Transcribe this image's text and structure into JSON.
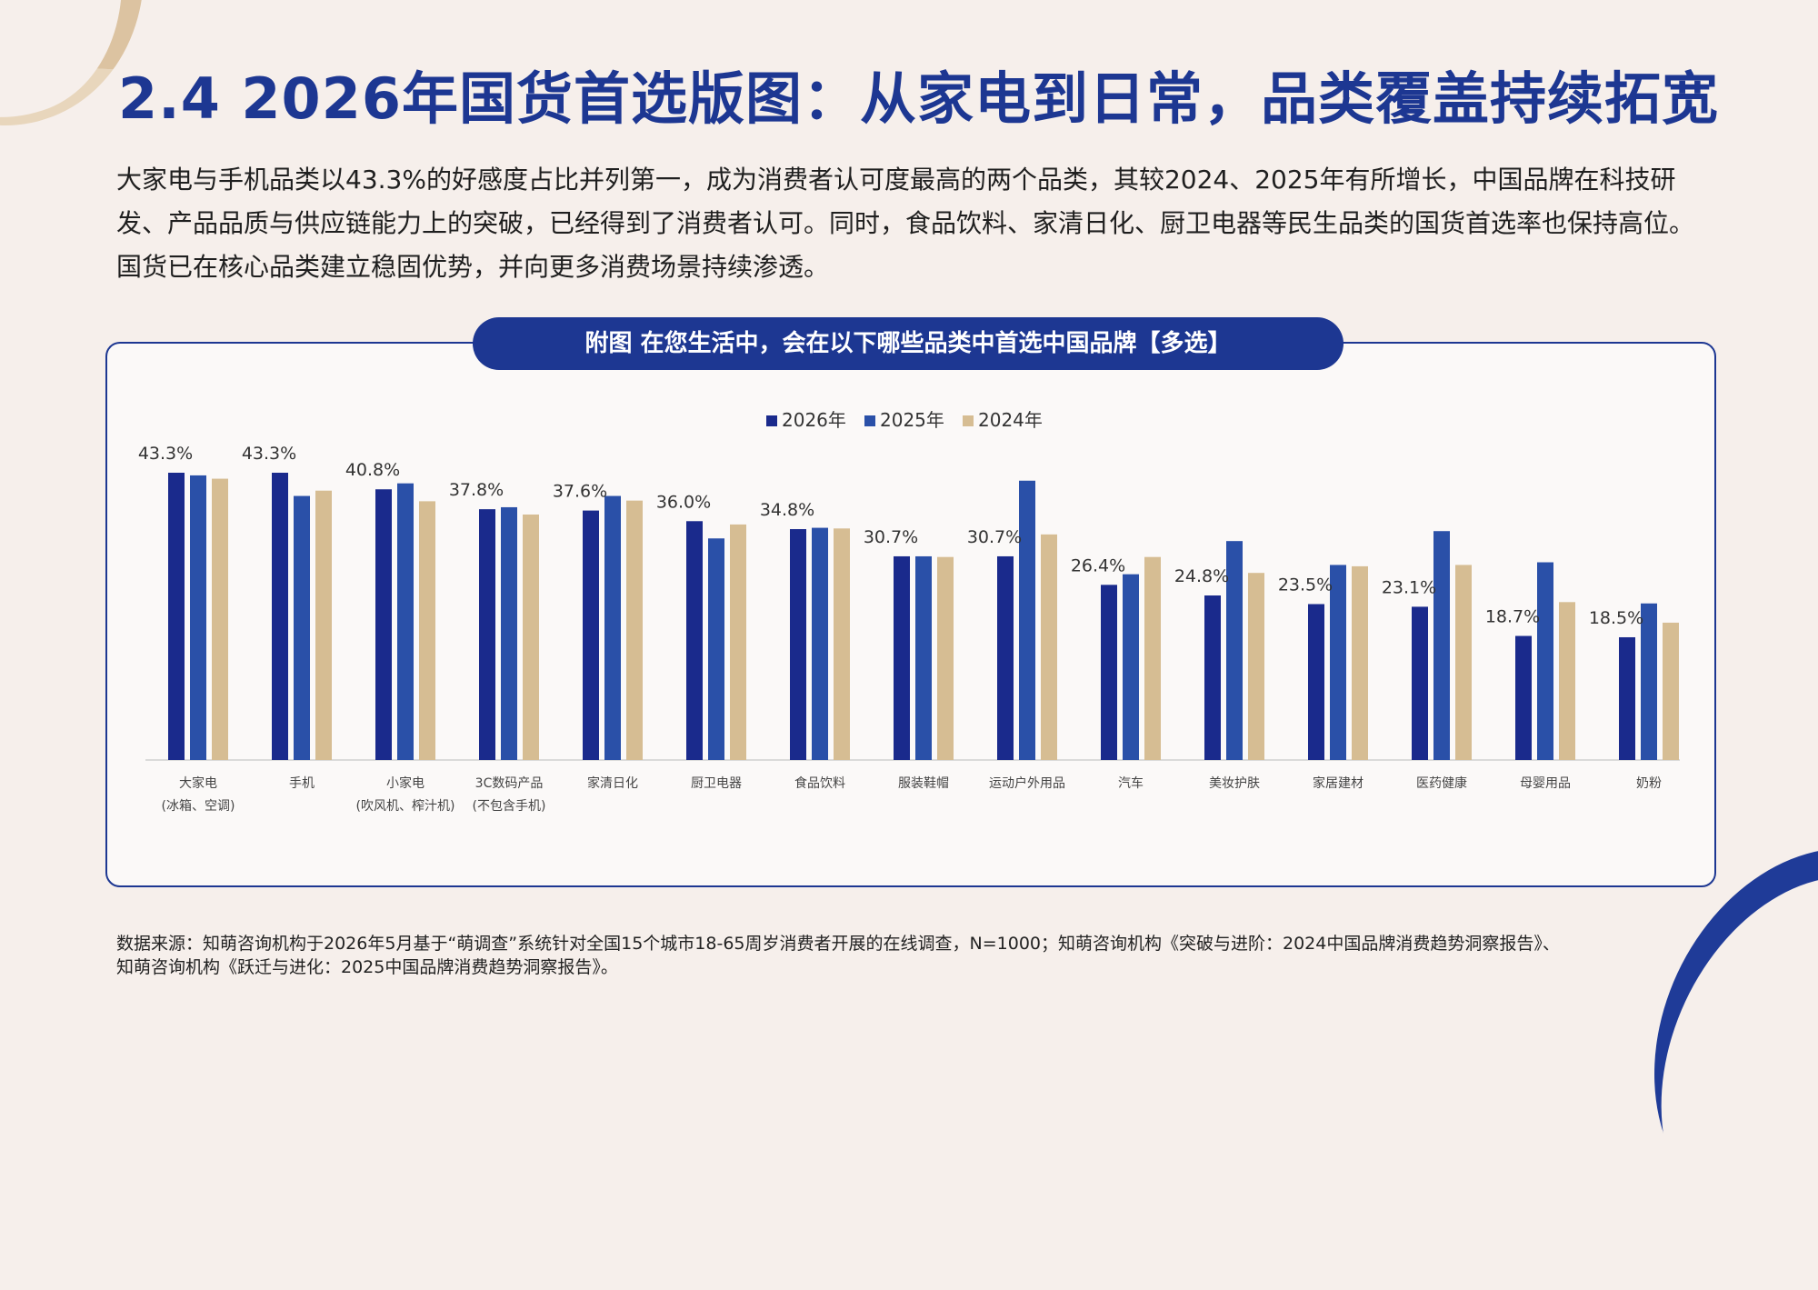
{
  "page": {
    "title": "2.4  2026年国货首选版图：从家电到日常，品类覆盖持续拓宽",
    "intro": "大家电与手机品类以43.3%的好感度占比并列第一，成为消费者认可度最高的两个品类，其较2024、2025年有所增长，中国品牌在科技研发、产品品质与供应链能力上的突破，已经得到了消费者认可。同时，食品饮料、家清日化、厨卫电器等民生品类的国货首选率也保持高位。国货已在核心品类建立稳固优势，并向更多消费场景持续渗透。",
    "chart_heading": "附图  在您生活中，会在以下哪些品类中首选中国品牌【多选】",
    "footer_line1": "数据来源：知萌咨询机构于2026年5月基于“萌调查”系统针对全国15个城市18-65周岁消费者开展的在线调查，N=1000；知萌咨询机构《突破与进阶：2024中国品牌消费趋势洞察报告》、",
    "footer_line2": "知萌咨询机构《跃迁与进化：2025中国品牌消费趋势洞察报告》。",
    "colors": {
      "primary": "#1d3792",
      "background": "#f6efeb",
      "accent_gold": "#dcc3a1"
    }
  },
  "chart_data": {
    "type": "bar",
    "categories": [
      [
        "大家电",
        "(冰箱、空调)"
      ],
      [
        "手机"
      ],
      [
        "小家电",
        "(吹风机、榨汁机)"
      ],
      [
        "3C数码产品",
        "(不包含手机)"
      ],
      [
        "家清日化"
      ],
      [
        "厨卫电器"
      ],
      [
        "食品饮料"
      ],
      [
        "服装鞋帽"
      ],
      [
        "运动户外用品"
      ],
      [
        "汽车"
      ],
      [
        "美妆护肤"
      ],
      [
        "家居建材"
      ],
      [
        "医药健康"
      ],
      [
        "母婴用品"
      ],
      [
        "奶粉"
      ]
    ],
    "series": [
      {
        "name": "2026年",
        "color": "#1a2a8c",
        "values": [
          43.3,
          43.3,
          40.8,
          37.8,
          37.6,
          36.0,
          34.8,
          30.7,
          30.7,
          26.4,
          24.8,
          23.5,
          23.1,
          18.7,
          18.5
        ]
      },
      {
        "name": "2025年",
        "color": "#2a50a8",
        "values": [
          42.9,
          39.8,
          41.7,
          38.1,
          39.8,
          33.4,
          35.0,
          30.7,
          42.1,
          28.0,
          33.0,
          29.4,
          34.5,
          29.8,
          23.6
        ]
      },
      {
        "name": "2024年",
        "color": "#d6bd93",
        "values": [
          42.4,
          40.6,
          39.0,
          37.0,
          39.1,
          35.5,
          34.9,
          30.6,
          34.0,
          30.6,
          28.2,
          29.2,
          29.4,
          23.8,
          20.7
        ]
      }
    ],
    "data_labels": [
      "43.3%",
      "43.3%",
      "40.8%",
      "37.8%",
      "37.6%",
      "36.0%",
      "34.8%",
      "30.7%",
      "30.7%",
      "26.4%",
      "24.8%",
      "23.5%",
      "23.1%",
      "18.7%",
      "18.5%"
    ],
    "legend_position": "top-center",
    "ylim": [
      0,
      46
    ],
    "grid": false
  }
}
